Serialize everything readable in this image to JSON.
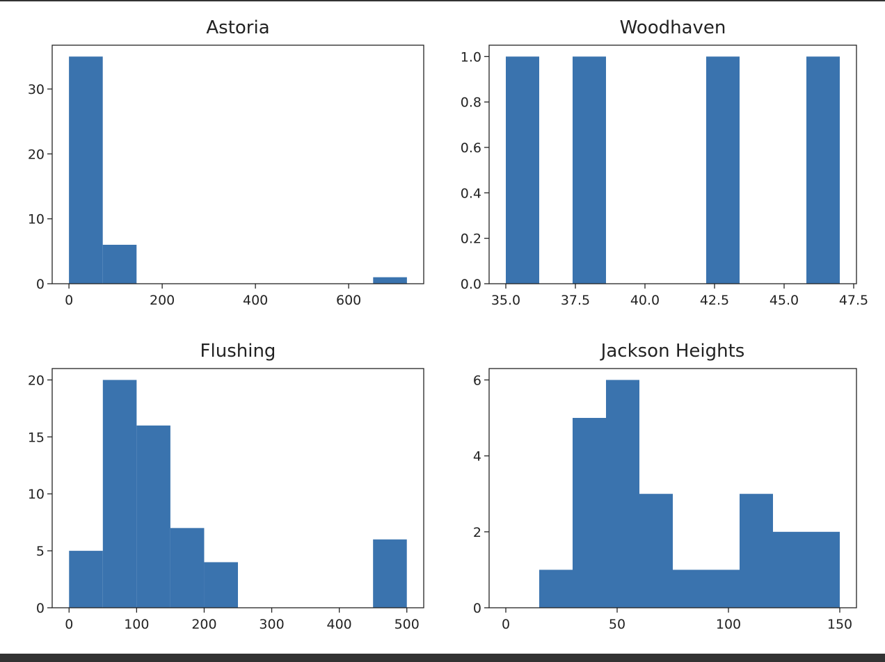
{
  "chart_data": [
    {
      "type": "histogram",
      "title": "Astoria",
      "color": "#3a73ae",
      "bins": [
        0,
        72.5,
        145,
        217.5,
        290,
        362.5,
        435,
        507.5,
        580,
        652.5,
        725
      ],
      "values": [
        35,
        6,
        0,
        0,
        0,
        0,
        0,
        0,
        0,
        1
      ],
      "xlim": [
        -36,
        761
      ],
      "xticks": [
        0,
        200,
        400,
        600
      ],
      "ylim": [
        0,
        36.75
      ],
      "yticks": [
        0,
        10,
        20,
        30
      ]
    },
    {
      "type": "histogram",
      "title": "Woodhaven",
      "color": "#3a73ae",
      "bins": [
        35,
        36.2,
        37.4,
        38.6,
        39.8,
        41,
        42.2,
        43.4,
        44.6,
        45.8,
        47
      ],
      "values": [
        1,
        0,
        1,
        0,
        0,
        0,
        1,
        0,
        0,
        1
      ],
      "xlim": [
        34.4,
        47.6
      ],
      "xticks": [
        {
          "value": 35,
          "label": "35.0"
        },
        {
          "value": 37.5,
          "label": "37.5"
        },
        {
          "value": 40,
          "label": "40.0"
        },
        {
          "value": 42.5,
          "label": "42.5"
        },
        {
          "value": 45,
          "label": "45.0"
        },
        {
          "value": 47.5,
          "label": "47.5"
        }
      ],
      "ylim": [
        0,
        1.05
      ],
      "yticks": [
        {
          "value": 0,
          "label": "0.0"
        },
        {
          "value": 0.2,
          "label": "0.2"
        },
        {
          "value": 0.4,
          "label": "0.4"
        },
        {
          "value": 0.6,
          "label": "0.6"
        },
        {
          "value": 0.8,
          "label": "0.8"
        },
        {
          "value": 1,
          "label": "1.0"
        }
      ]
    },
    {
      "type": "histogram",
      "title": "Flushing",
      "color": "#3a73ae",
      "bins": [
        0,
        50,
        100,
        150,
        200,
        250,
        300,
        350,
        400,
        450,
        500
      ],
      "values": [
        5,
        20,
        16,
        7,
        4,
        0,
        0,
        0,
        0,
        6
      ],
      "xlim": [
        -25,
        525
      ],
      "xticks": [
        0,
        100,
        200,
        300,
        400,
        500
      ],
      "ylim": [
        0,
        21
      ],
      "yticks": [
        0,
        5,
        10,
        15,
        20
      ]
    },
    {
      "type": "histogram",
      "title": "Jackson Heights",
      "color": "#3a73ae",
      "bins": [
        0,
        15,
        30,
        45,
        60,
        75,
        90,
        105,
        120,
        135,
        150
      ],
      "values": [
        0,
        1,
        5,
        6,
        3,
        1,
        1,
        3,
        2,
        2
      ],
      "xlim": [
        -7.5,
        157.5
      ],
      "xticks": [
        0,
        50,
        100,
        150
      ],
      "ylim": [
        0,
        6.3
      ],
      "yticks": [
        0,
        2,
        4,
        6
      ]
    }
  ]
}
